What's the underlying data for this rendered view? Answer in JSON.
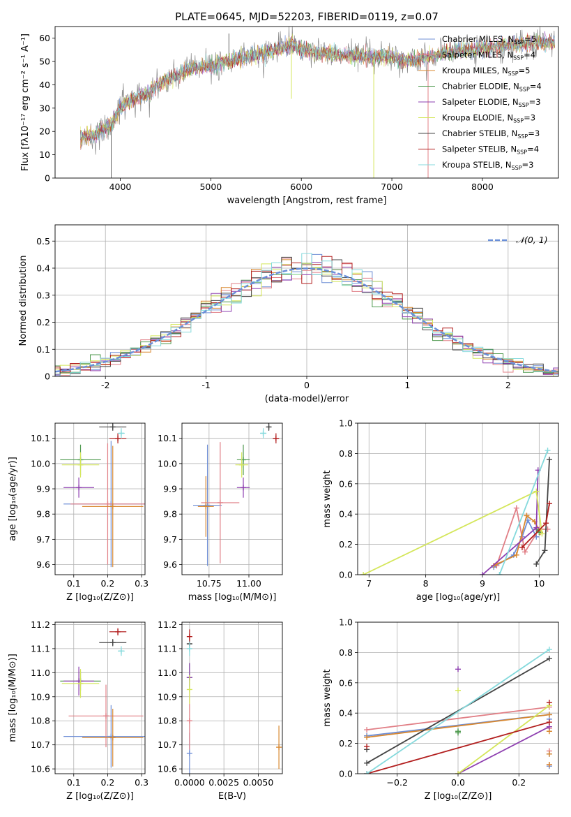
{
  "title": "PLATE=0645, MJD=52203, FIBERID=0119, z=0.07",
  "colors": {
    "chabrier_miles": "#6f8fd6",
    "salpeter_miles": "#e17f86",
    "kroupa_miles": "#d8872e",
    "chabrier_elodie": "#4f9a4f",
    "salpeter_elodie": "#8e3fb0",
    "kroupa_elodie": "#d4e65a",
    "chabrier_stelib": "#444444",
    "salpeter_stelib": "#b21e1e",
    "kroupa_stelib": "#84d9dc",
    "gaussian": "#6a8fd8",
    "grid": "#b0b0b0"
  },
  "chart_data": [
    {
      "id": "spectrum",
      "type": "line",
      "title": "PLATE=0645, MJD=52203, FIBERID=0119, z=0.07",
      "xlabel": "wavelength [Angstrom, rest frame]",
      "ylabel": "Flux [fλ10⁻¹⁷ erg cm⁻² s⁻¹ A⁻¹]",
      "xlim": [
        3280,
        8840
      ],
      "ylim": [
        0,
        65
      ],
      "xticks": [
        4000,
        5000,
        6000,
        7000,
        8000
      ],
      "yticks": [
        0,
        10,
        20,
        30,
        40,
        50,
        60
      ],
      "grid": false,
      "legend": "upper right",
      "continuum": [
        [
          3560,
          17
        ],
        [
          3700,
          18
        ],
        [
          3900,
          23
        ],
        [
          4000,
          30
        ],
        [
          4150,
          34
        ],
        [
          4300,
          36
        ],
        [
          4500,
          42
        ],
        [
          4800,
          47
        ],
        [
          5000,
          48
        ],
        [
          5200,
          50
        ],
        [
          5500,
          53
        ],
        [
          5800,
          56
        ],
        [
          5900,
          57
        ],
        [
          6100,
          54
        ],
        [
          6400,
          53
        ],
        [
          6700,
          52
        ],
        [
          7000,
          52
        ],
        [
          7200,
          50
        ],
        [
          7400,
          52
        ],
        [
          7700,
          54
        ],
        [
          8000,
          56
        ],
        [
          8300,
          57
        ],
        [
          8500,
          58
        ],
        [
          8800,
          58
        ]
      ],
      "spikes": [
        [
          3900,
          0
        ],
        [
          5200,
          62
        ],
        [
          5890,
          34
        ],
        [
          6800,
          0
        ],
        [
          7400,
          0
        ]
      ],
      "series": [
        {
          "key": "chabrier_miles",
          "label": "Chabrier MILES, N_SSP=5",
          "text": "Chabrier MILES, N",
          "nssp": "=5"
        },
        {
          "key": "salpeter_miles",
          "label": "Salpeter MILES, N_SSP=4",
          "text": "Salpeter MILES, N",
          "nssp": "=4"
        },
        {
          "key": "kroupa_miles",
          "label": "Kroupa MILES, N_SSP=5",
          "text": "Kroupa MILES, N",
          "nssp": "=5"
        },
        {
          "key": "chabrier_elodie",
          "label": "Chabrier ELODIE, N_SSP=4",
          "text": "Chabrier ELODIE, N",
          "nssp": "=4"
        },
        {
          "key": "salpeter_elodie",
          "label": "Salpeter ELODIE, N_SSP=3",
          "text": "Salpeter ELODIE, N",
          "nssp": "=3"
        },
        {
          "key": "kroupa_elodie",
          "label": "Kroupa ELODIE, N_SSP=3",
          "text": "Kroupa ELODIE, N",
          "nssp": "=3"
        },
        {
          "key": "chabrier_stelib",
          "label": "Chabrier STELIB, N_SSP=3",
          "text": "Chabrier STELIB, N",
          "nssp": "=3"
        },
        {
          "key": "salpeter_stelib",
          "label": "Salpeter STELIB, N_SSP=4",
          "text": "Salpeter STELIB, N",
          "nssp": "=4"
        },
        {
          "key": "kroupa_stelib",
          "label": "Kroupa STELIB, N_SSP=3",
          "text": "Kroupa STELIB, N",
          "nssp": "=3"
        }
      ]
    },
    {
      "id": "residuals",
      "type": "histogram",
      "xlabel": "(data-model)/error",
      "ylabel": "Normed distribution",
      "xlim": [
        -2.5,
        2.5
      ],
      "ylim": [
        0,
        0.56
      ],
      "xticks": [
        -2,
        -1,
        0,
        1,
        2
      ],
      "yticks": [
        0.0,
        0.1,
        0.2,
        0.3,
        0.4,
        0.5
      ],
      "grid": true,
      "legend": "upper right",
      "gaussian_label": "𝒩(0, 1)",
      "bin_width": 0.1,
      "reference": "normal(0,1)"
    },
    {
      "id": "age_vs_Z",
      "type": "errorbar",
      "xlabel": "Z [log₁₀(Z/Z⊙)]",
      "ylabel": "age  [log₁₀(age/yr)]",
      "xlim": [
        0.045,
        0.31
      ],
      "ylim": [
        9.56,
        10.16
      ],
      "xticks": [
        0.1,
        0.2,
        0.3
      ],
      "xticklabels": [
        "0.1",
        "0.2",
        "0.3"
      ],
      "yticks": [
        9.6,
        9.7,
        9.8,
        9.9,
        10.0,
        10.1
      ],
      "yticklabels": [
        "9.6",
        "9.7",
        "9.8",
        "9.9",
        "10.0",
        "10.1"
      ],
      "grid": true,
      "points": [
        {
          "key": "chabrier_miles",
          "x": 0.21,
          "xerr": 0.14,
          "y": 9.84,
          "yerr": 0.25
        },
        {
          "key": "salpeter_miles",
          "x": 0.2,
          "xerr": 0.11,
          "y": 9.84,
          "yerr": 0.24
        },
        {
          "key": "kroupa_miles",
          "x": 0.215,
          "xerr": 0.09,
          "y": 9.83,
          "yerr": 0.24
        },
        {
          "key": "chabrier_elodie",
          "x": 0.12,
          "xerr": 0.06,
          "y": 10.015,
          "yerr": 0.06
        },
        {
          "key": "salpeter_elodie",
          "x": 0.115,
          "xerr": 0.045,
          "y": 9.905,
          "yerr": 0.04
        },
        {
          "key": "kroupa_elodie",
          "x": 0.12,
          "xerr": 0.055,
          "y": 9.995,
          "yerr": 0.05
        },
        {
          "key": "chabrier_stelib",
          "x": 0.215,
          "xerr": 0.04,
          "y": 10.145,
          "yerr": 0.015
        },
        {
          "key": "salpeter_stelib",
          "x": 0.23,
          "xerr": 0.025,
          "y": 10.1,
          "yerr": 0.02
        },
        {
          "key": "kroupa_stelib",
          "x": 0.24,
          "xerr": 0.01,
          "y": 10.12,
          "yerr": 0.02
        }
      ]
    },
    {
      "id": "age_vs_mass",
      "type": "errorbar",
      "xlabel": "mass [log₁₀(M/M⊙)]",
      "ylabel": "",
      "xlim": [
        10.58,
        11.21
      ],
      "ylim": [
        9.56,
        10.16
      ],
      "xticks": [
        10.75,
        11.0
      ],
      "xticklabels": [
        "10.75",
        "11.00"
      ],
      "yticks": [
        9.6,
        9.7,
        9.8,
        9.9,
        10.0,
        10.1
      ],
      "yticklabels": [
        "9.6",
        "9.7",
        "9.8",
        "9.9",
        "10.0",
        "10.1"
      ],
      "grid": true,
      "points": [
        {
          "key": "chabrier_miles",
          "x": 10.74,
          "xerr": 0.09,
          "y": 9.835,
          "yerr": 0.24
        },
        {
          "key": "salpeter_miles",
          "x": 10.82,
          "xerr": 0.12,
          "y": 9.845,
          "yerr": 0.24
        },
        {
          "key": "kroupa_miles",
          "x": 10.73,
          "xerr": 0.05,
          "y": 9.83,
          "yerr": 0.12
        },
        {
          "key": "chabrier_elodie",
          "x": 10.965,
          "xerr": 0.04,
          "y": 10.015,
          "yerr": 0.06
        },
        {
          "key": "salpeter_elodie",
          "x": 10.965,
          "xerr": 0.04,
          "y": 9.905,
          "yerr": 0.04
        },
        {
          "key": "kroupa_elodie",
          "x": 10.955,
          "xerr": 0.04,
          "y": 9.995,
          "yerr": 0.05
        },
        {
          "key": "chabrier_stelib",
          "x": 11.125,
          "xerr": 0.01,
          "y": 10.145,
          "yerr": 0.015
        },
        {
          "key": "salpeter_stelib",
          "x": 11.17,
          "xerr": 0.02,
          "y": 10.1,
          "yerr": 0.02
        },
        {
          "key": "kroupa_stelib",
          "x": 11.09,
          "xerr": 0.02,
          "y": 10.12,
          "yerr": 0.02
        }
      ]
    },
    {
      "id": "mw_vs_age",
      "type": "line",
      "xlabel": "age  [log₁₀(age/yr)]",
      "ylabel": "mass weight",
      "xlim": [
        6.8,
        10.34
      ],
      "ylim": [
        0,
        1
      ],
      "xticks": [
        7,
        8,
        9,
        10
      ],
      "xticklabels": [
        "7",
        "8",
        "9",
        "10"
      ],
      "yticks": [
        0,
        0.2,
        0.4,
        0.6,
        0.8,
        1.0
      ],
      "yticklabels": [
        "0.0",
        "0.2",
        "0.4",
        "0.6",
        "0.8",
        "1.0"
      ],
      "grid": true,
      "series": [
        {
          "key": "chabrier_miles",
          "points": [
            [
              9.2,
              0.05
            ],
            [
              9.55,
              0.13
            ],
            [
              9.7,
              0.25
            ],
            [
              9.8,
              0.36
            ],
            [
              9.95,
              0.25
            ]
          ]
        },
        {
          "key": "salpeter_miles",
          "points": [
            [
              9.25,
              0.06
            ],
            [
              9.6,
              0.44
            ],
            [
              9.75,
              0.15
            ],
            [
              10.0,
              0.3
            ],
            [
              10.15,
              0.3
            ]
          ]
        },
        {
          "key": "kroupa_miles",
          "points": [
            [
              9.2,
              0.06
            ],
            [
              9.6,
              0.13
            ],
            [
              9.78,
              0.39
            ],
            [
              9.92,
              0.35
            ],
            [
              10.02,
              0.28
            ]
          ]
        },
        {
          "key": "chabrier_elodie",
          "points": [
            [
              9.95,
              0.3
            ],
            [
              10.0,
              0.28
            ]
          ]
        },
        {
          "key": "salpeter_elodie",
          "points": [
            [
              9.0,
              0.0
            ],
            [
              9.95,
              0.31
            ],
            [
              9.98,
              0.69
            ]
          ]
        },
        {
          "key": "kroupa_elodie",
          "points": [
            [
              6.9,
              0.0
            ],
            [
              9.95,
              0.55
            ],
            [
              10.05,
              0.27
            ]
          ]
        },
        {
          "key": "chabrier_stelib",
          "points": [
            [
              9.95,
              0.07
            ],
            [
              10.1,
              0.16
            ],
            [
              10.18,
              0.76
            ]
          ]
        },
        {
          "key": "salpeter_stelib",
          "points": [
            [
              9.7,
              0.18
            ],
            [
              10.12,
              0.34
            ],
            [
              10.18,
              0.47
            ]
          ]
        },
        {
          "key": "kroupa_stelib",
          "points": [
            [
              9.3,
              0.0
            ],
            [
              10.15,
              0.82
            ]
          ]
        }
      ]
    },
    {
      "id": "mass_vs_Z",
      "type": "errorbar",
      "xlabel": "Z [log₁₀(Z/Z⊙)]",
      "ylabel": "mass [log₁₀(M/M⊙)]",
      "xlim": [
        0.045,
        0.31
      ],
      "ylim": [
        10.58,
        11.21
      ],
      "xticks": [
        0.1,
        0.2,
        0.3
      ],
      "xticklabels": [
        "0.1",
        "0.2",
        "0.3"
      ],
      "yticks": [
        10.6,
        10.7,
        10.8,
        10.9,
        11.0,
        11.1,
        11.2
      ],
      "yticklabels": [
        "10.6",
        "10.7",
        "10.8",
        "10.9",
        "11.0",
        "11.1",
        "11.2"
      ],
      "grid": true,
      "points": [
        {
          "key": "chabrier_miles",
          "x": 0.21,
          "xerr": 0.14,
          "y": 10.735,
          "yerr": 0.13
        },
        {
          "key": "salpeter_miles",
          "x": 0.195,
          "xerr": 0.11,
          "y": 10.82,
          "yerr": 0.13
        },
        {
          "key": "kroupa_miles",
          "x": 0.215,
          "xerr": 0.09,
          "y": 10.73,
          "yerr": 0.12
        },
        {
          "key": "chabrier_elodie",
          "x": 0.12,
          "xerr": 0.06,
          "y": 10.965,
          "yerr": 0.04
        },
        {
          "key": "salpeter_elodie",
          "x": 0.115,
          "xerr": 0.045,
          "y": 10.965,
          "yerr": 0.06
        },
        {
          "key": "kroupa_elodie",
          "x": 0.12,
          "xerr": 0.055,
          "y": 10.955,
          "yerr": 0.06
        },
        {
          "key": "chabrier_stelib",
          "x": 0.215,
          "xerr": 0.04,
          "y": 11.125,
          "yerr": 0.015
        },
        {
          "key": "salpeter_stelib",
          "x": 0.23,
          "xerr": 0.025,
          "y": 11.17,
          "yerr": 0.015
        },
        {
          "key": "kroupa_stelib",
          "x": 0.24,
          "xerr": 0.01,
          "y": 11.09,
          "yerr": 0.02
        }
      ]
    },
    {
      "id": "mass_vs_ebv",
      "type": "errorbar",
      "xlabel": "E(B-V)",
      "ylabel": "",
      "xlim": [
        -0.00055,
        0.00675
      ],
      "ylim": [
        10.58,
        11.21
      ],
      "xticks": [
        0.0,
        0.0025,
        0.005
      ],
      "xticklabels": [
        "0.0000",
        "0.0025",
        "0.0050"
      ],
      "yticks": [
        10.6,
        10.7,
        10.8,
        10.9,
        11.0,
        11.1,
        11.2
      ],
      "yticklabels": [
        "10.6",
        "10.7",
        "10.8",
        "10.9",
        "11.0",
        "11.1",
        "11.2"
      ],
      "grid": true,
      "points": [
        {
          "key": "chabrier_miles",
          "x": 0.0,
          "xerr": 0,
          "y": 10.665,
          "yerr": 0.085
        },
        {
          "key": "salpeter_miles",
          "x": 0.0,
          "xerr": 0,
          "y": 10.8,
          "yerr": 0.12
        },
        {
          "key": "kroupa_miles",
          "x": 0.0065,
          "xerr": 0,
          "y": 10.69,
          "yerr": 0.09
        },
        {
          "key": "chabrier_elodie",
          "x": 0.0,
          "xerr": 0,
          "y": 10.98,
          "yerr": 0.06
        },
        {
          "key": "salpeter_elodie",
          "x": 0.0,
          "xerr": 0,
          "y": 10.98,
          "yerr": 0.06
        },
        {
          "key": "kroupa_elodie",
          "x": 0.0,
          "xerr": 0,
          "y": 10.93,
          "yerr": 0.06
        },
        {
          "key": "chabrier_stelib",
          "x": 0.0,
          "xerr": 0,
          "y": 11.12,
          "yerr": 0.02
        },
        {
          "key": "salpeter_stelib",
          "x": 0.0,
          "xerr": 0,
          "y": 11.15,
          "yerr": 0.03
        },
        {
          "key": "kroupa_stelib",
          "x": 0.0,
          "xerr": 0,
          "y": 11.1,
          "yerr": 0.03
        }
      ]
    },
    {
      "id": "mw_vs_Z",
      "type": "line",
      "xlabel": "Z [log₁₀(Z/Z⊙)]",
      "ylabel": "mass weight",
      "xlim": [
        -0.33,
        0.33
      ],
      "ylim": [
        0,
        1
      ],
      "xticks": [
        -0.2,
        0.0,
        0.2
      ],
      "xticklabels": [
        "−0.2",
        "0.0",
        "0.2"
      ],
      "yticks": [
        0,
        0.2,
        0.4,
        0.6,
        0.8,
        1.0
      ],
      "yticklabels": [
        "0.0",
        "0.2",
        "0.4",
        "0.6",
        "0.8",
        "1.0"
      ],
      "grid": true,
      "series": [
        {
          "key": "chabrier_miles",
          "points": [
            [
              -0.3,
              0.25
            ],
            [
              0.3,
              0.39
            ]
          ],
          "marks": [
            [
              0.3,
              0.05
            ],
            [
              0.3,
              0.13
            ],
            [
              0.3,
              0.36
            ]
          ]
        },
        {
          "key": "salpeter_miles",
          "points": [
            [
              -0.3,
              0.29
            ],
            [
              0.3,
              0.44
            ]
          ],
          "marks": [
            [
              0.3,
              0.06
            ],
            [
              0.3,
              0.15
            ],
            [
              0.3,
              0.3
            ]
          ]
        },
        {
          "key": "kroupa_miles",
          "points": [
            [
              -0.3,
              0.24
            ],
            [
              0.3,
              0.39
            ]
          ],
          "marks": [
            [
              0.3,
              0.06
            ],
            [
              0.3,
              0.13
            ],
            [
              0.3,
              0.28
            ]
          ]
        },
        {
          "key": "chabrier_elodie",
          "points": [
            [
              0.0,
              0.27
            ]
          ],
          "marks": [
            [
              0.0,
              0.28
            ]
          ]
        },
        {
          "key": "salpeter_elodie",
          "points": [
            [
              0.0,
              0.0
            ],
            [
              0.3,
              0.31
            ]
          ],
          "marks": [
            [
              0.0,
              0.69
            ]
          ]
        },
        {
          "key": "kroupa_elodie",
          "points": [
            [
              0.0,
              0.0
            ],
            [
              0.3,
              0.45
            ]
          ],
          "marks": [
            [
              0.0,
              0.55
            ]
          ]
        },
        {
          "key": "chabrier_stelib",
          "points": [
            [
              -0.3,
              0.07
            ],
            [
              0.3,
              0.76
            ]
          ],
          "marks": [
            [
              -0.3,
              0.16
            ]
          ]
        },
        {
          "key": "salpeter_stelib",
          "points": [
            [
              -0.3,
              0.0
            ],
            [
              0.3,
              0.34
            ]
          ],
          "marks": [
            [
              0.3,
              0.47
            ],
            [
              -0.3,
              0.18
            ]
          ]
        },
        {
          "key": "kroupa_stelib",
          "points": [
            [
              -0.3,
              0.0
            ],
            [
              0.3,
              0.82
            ]
          ],
          "marks": []
        }
      ]
    }
  ]
}
